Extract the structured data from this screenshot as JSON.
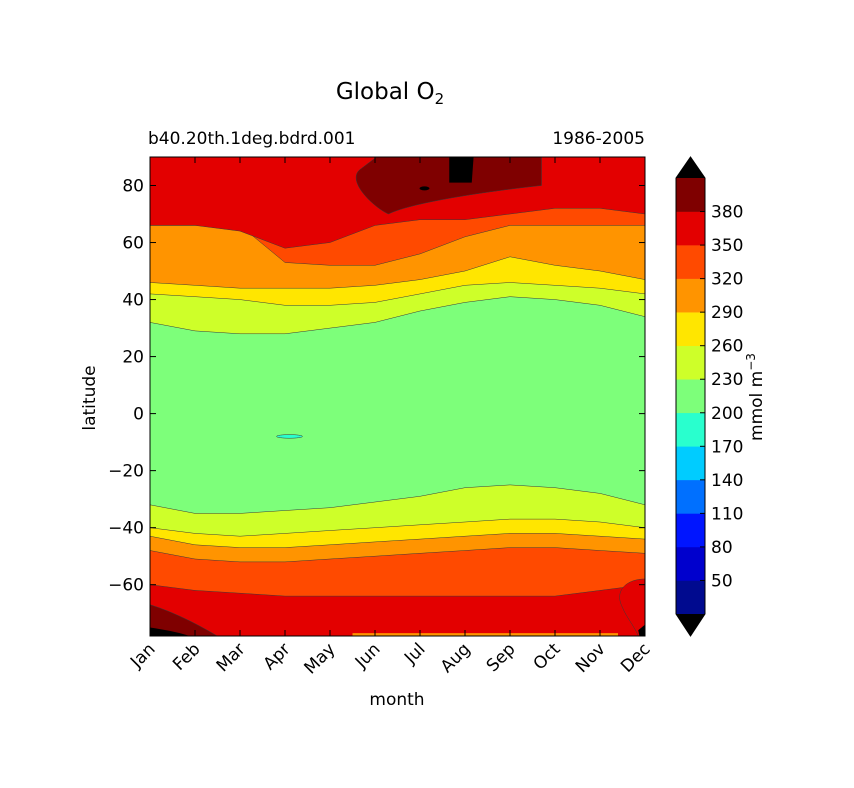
{
  "chart_data": {
    "type": "heatmap",
    "title": "Global O",
    "title_subscript": "2",
    "subtitle_left": "b40.20th.1deg.bdrd.001",
    "subtitle_right": "1986-2005",
    "xlabel": "month",
    "ylabel": "latitude",
    "x_ticks": [
      "Jan",
      "Feb",
      "Mar",
      "Apr",
      "May",
      "Jun",
      "Jul",
      "Aug",
      "Sep",
      "Oct",
      "Nov",
      "Dec"
    ],
    "y_ticks": [
      80,
      60,
      40,
      20,
      0,
      -20,
      -40,
      -60
    ],
    "y_tick_labels": [
      "80",
      "60",
      "40",
      "20",
      "0",
      "−20",
      "−40",
      "−60"
    ],
    "ylim": [
      -78,
      90
    ],
    "xlim": [
      0,
      11
    ],
    "colorbar": {
      "label": "mmol m",
      "label_exponent": "−3",
      "tick_labels": [
        "50",
        "80",
        "110",
        "140",
        "170",
        "200",
        "230",
        "260",
        "290",
        "320",
        "350",
        "380"
      ],
      "levels": [
        20,
        50,
        80,
        110,
        140,
        170,
        200,
        230,
        260,
        290,
        320,
        350,
        380,
        410
      ],
      "colors": [
        "#000a8f",
        "#0000cd",
        "#0015ff",
        "#0070ff",
        "#00ccff",
        "#29ffce",
        "#7dff7a",
        "#ceff29",
        "#ffe600",
        "#ff9400",
        "#ff4a00",
        "#e30000",
        "#7f0000"
      ],
      "extend_low_color": "#000000",
      "extend_high_color": "#000000"
    },
    "contour_boundaries": {
      "description": "approximate latitude of each contour level boundary per month (Jan..Dec)",
      "north": {
        "350": [
          66,
          66,
          64,
          58,
          60,
          66,
          68,
          68,
          70,
          72,
          72,
          70
        ],
        "320": [
          66,
          66,
          66,
          53,
          52,
          52,
          56,
          62,
          66,
          66,
          66,
          66
        ],
        "290": [
          46,
          45,
          44,
          44,
          44,
          45,
          47,
          50,
          55,
          52,
          50,
          47
        ],
        "260": [
          42,
          41,
          40,
          38,
          38,
          39,
          42,
          45,
          46,
          45,
          44,
          42
        ],
        "230": [
          32,
          29,
          28,
          28,
          30,
          32,
          36,
          39,
          41,
          40,
          38,
          34
        ]
      },
      "south": {
        "230": [
          -32,
          -35,
          -35,
          -34,
          -33,
          -31,
          -29,
          -26,
          -25,
          -26,
          -28,
          -32
        ],
        "260": [
          -40,
          -42,
          -43,
          -42,
          -41,
          -40,
          -39,
          -38,
          -37,
          -37,
          -38,
          -40
        ],
        "290": [
          -43,
          -46,
          -47,
          -47,
          -46,
          -45,
          -44,
          -43,
          -42,
          -42,
          -43,
          -44
        ],
        "320": [
          -48,
          -51,
          -52,
          -52,
          -51,
          -50,
          -49,
          -48,
          -47,
          -47,
          -48,
          -49
        ],
        "350": [
          -60,
          -62,
          -63,
          -64,
          -64,
          -64,
          -64,
          -64,
          -64,
          -64,
          -62,
          -60
        ]
      }
    },
    "local_min_annotation": "small 200 contour near Apr, −8° latitude"
  }
}
